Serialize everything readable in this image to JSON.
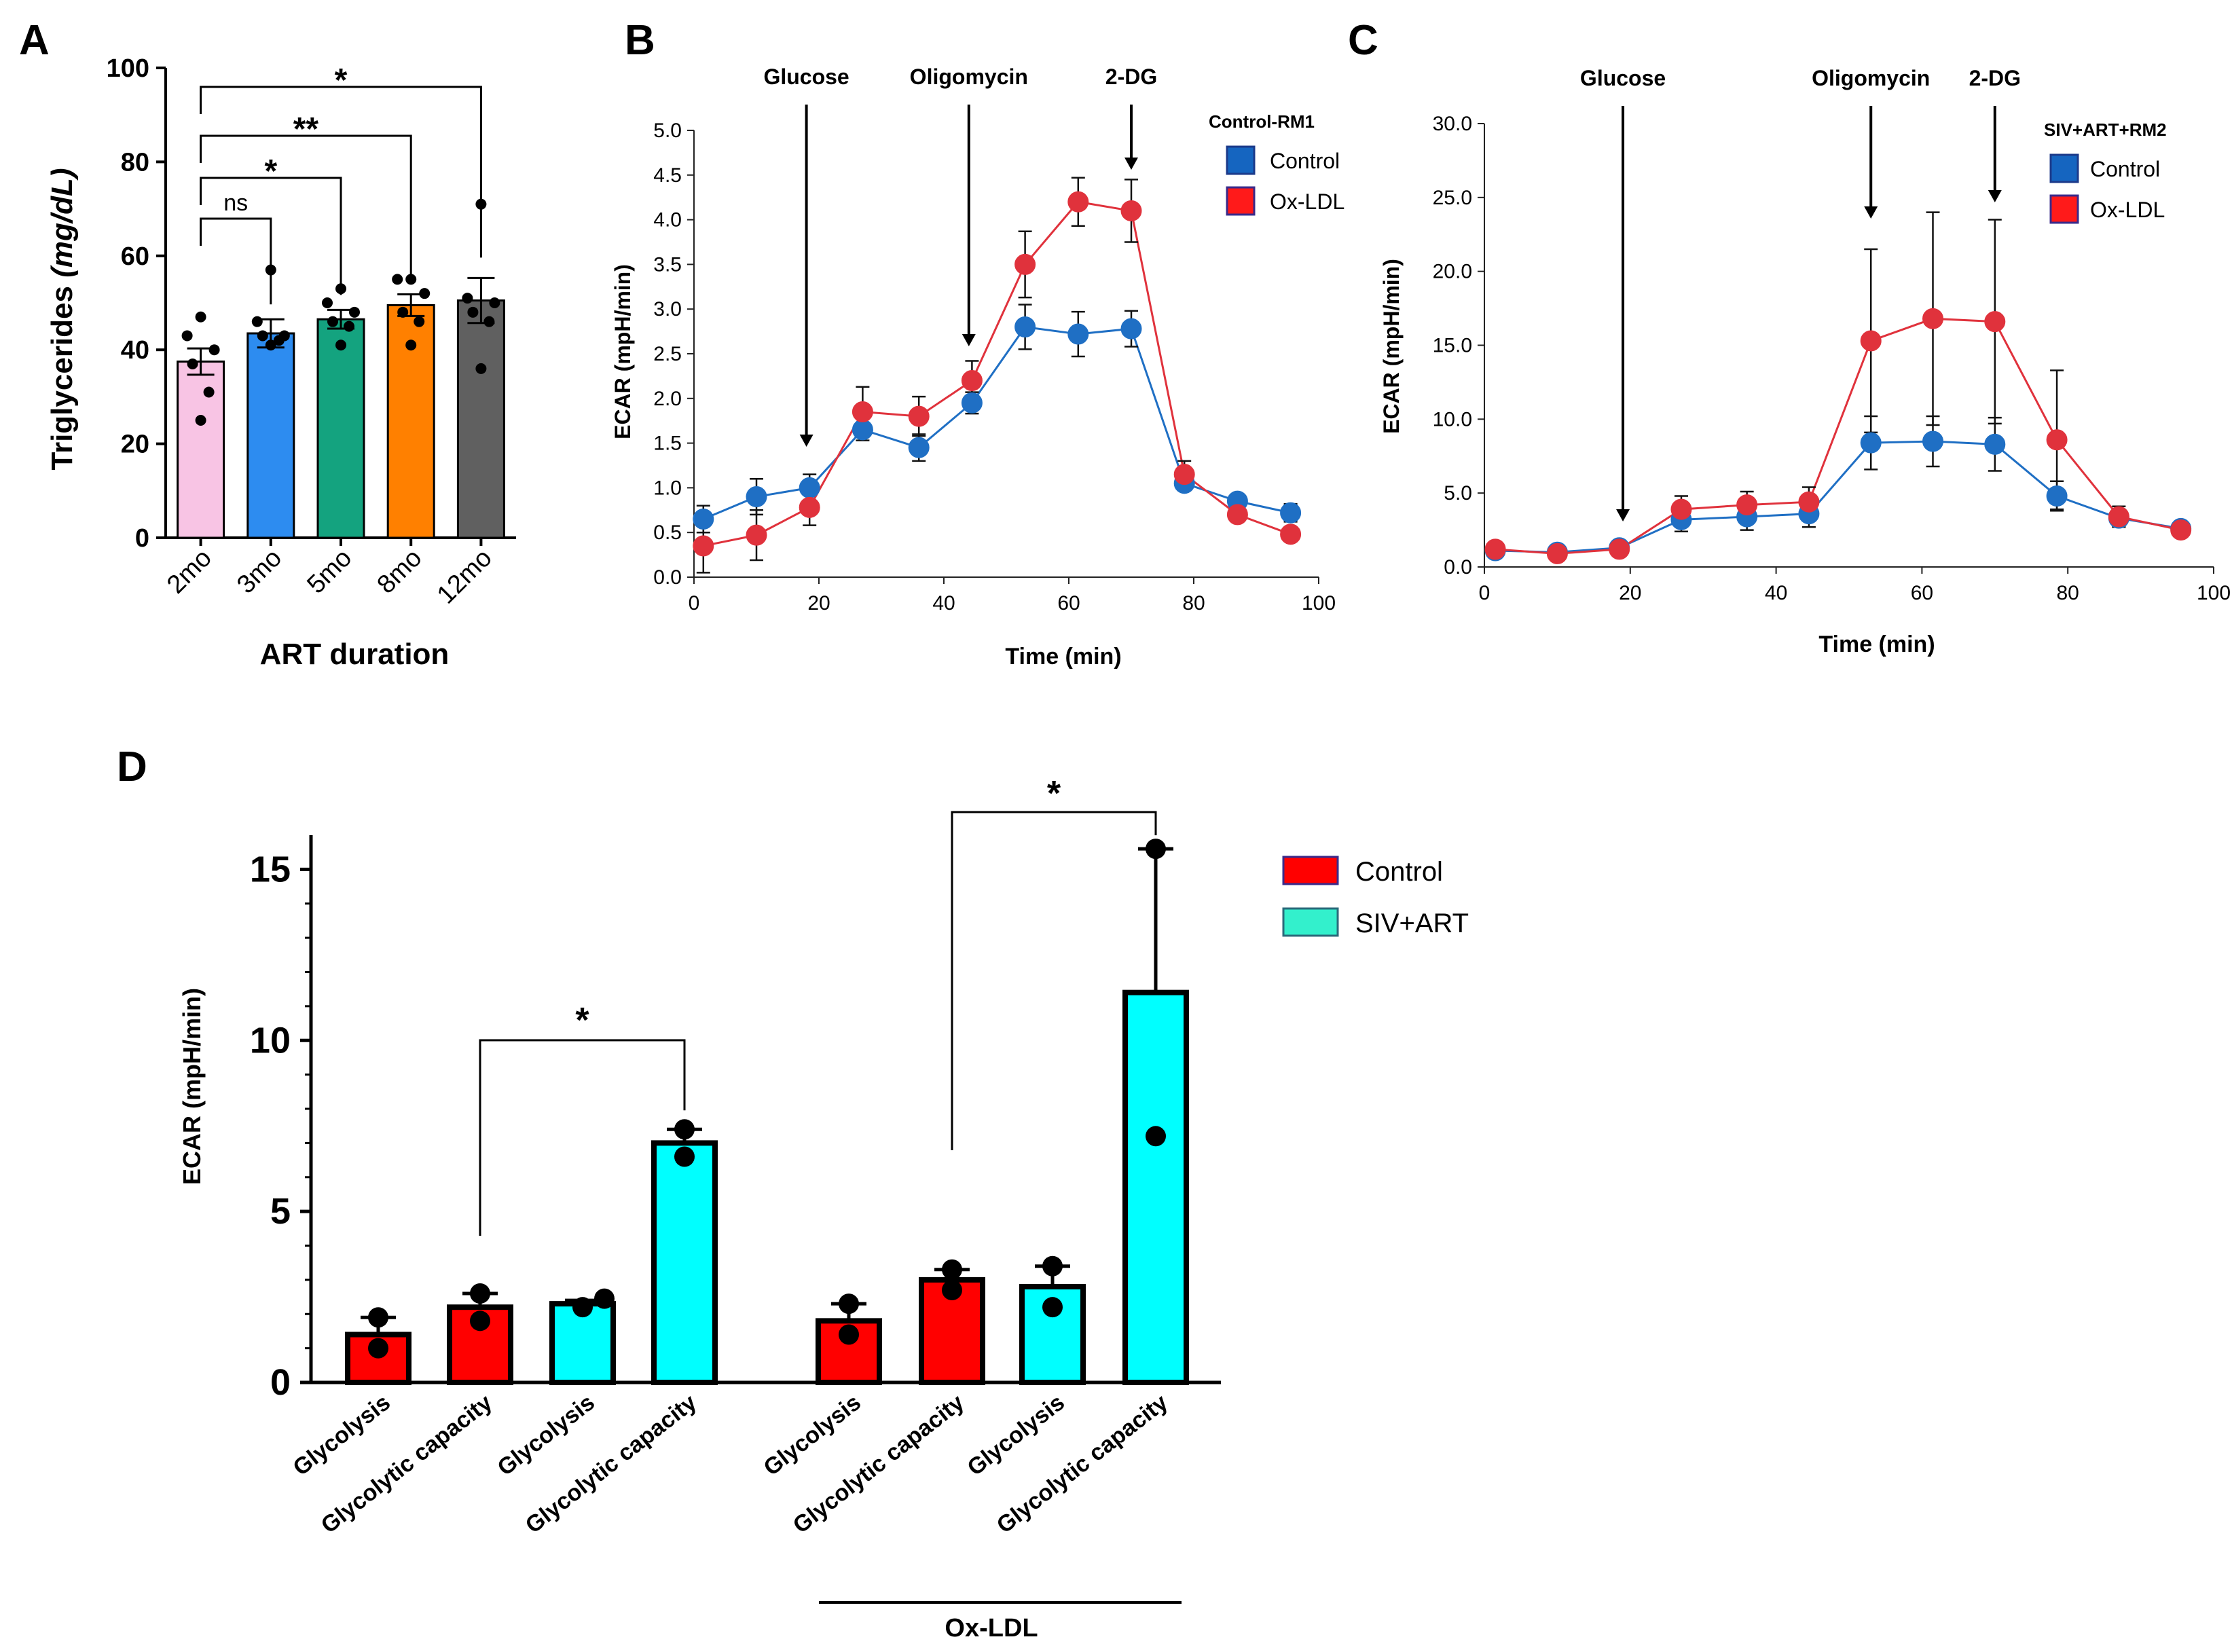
{
  "panels": {
    "A": {
      "letter": "A",
      "ylabel_main": "Triglycerides ",
      "ylabel_unit": "(mg/dL)",
      "xlabel": "ART duration"
    },
    "B": {
      "letter": "B",
      "legend_title": "Control-RM1",
      "legend": [
        "Control",
        "Ox-LDL"
      ],
      "injections": [
        "Glucose",
        "Oligomycin",
        "2-DG"
      ],
      "ylabel": "ECAR (mpH/min)",
      "xlabel": "Time (min)"
    },
    "C": {
      "letter": "C",
      "legend_title": "SIV+ART+RM2",
      "legend": [
        "Control",
        "Ox-LDL"
      ],
      "injections": [
        "Glucose",
        "Oligomycin",
        "2-DG"
      ],
      "ylabel": "ECAR (mpH/min)",
      "xlabel": "Time (min)"
    },
    "D": {
      "letter": "D",
      "legend": [
        "Control",
        "SIV+ART"
      ],
      "ylabel": "ECAR (mpH/min)",
      "group_label": "Ox-LDL"
    }
  },
  "colors": {
    "control_blue": "#1f6fc4",
    "oxldl_red": "#e0323c",
    "legend_blue": "#1565c0",
    "legend_red": "#ff1a1a",
    "d_red": "#ff0000",
    "d_cyan": "#00ffff",
    "d_legend_cyan": "#33f0cc",
    "a_bars": [
      "#f8c4e4",
      "#2d8cf0",
      "#14a37f",
      "#ff8000",
      "#606060"
    ]
  },
  "chart_data": [
    {
      "panel": "A",
      "type": "bar",
      "title": "",
      "xlabel": "ART duration",
      "ylabel": "Triglycerides (mg/dL)",
      "categories": [
        "2mo",
        "3mo",
        "5mo",
        "8mo",
        "12mo"
      ],
      "values": [
        37.5,
        43.5,
        46.5,
        49.5,
        50.5
      ],
      "errors": [
        2.8,
        3.0,
        2.0,
        2.3,
        4.8
      ],
      "points": [
        [
          47,
          43,
          40,
          37,
          31,
          25
        ],
        [
          57,
          46,
          43,
          43,
          42,
          41
        ],
        [
          53,
          50,
          48,
          46,
          45,
          41
        ],
        [
          55,
          55,
          52,
          48,
          46,
          41
        ],
        [
          71,
          51,
          50,
          48,
          46,
          36
        ]
      ],
      "ylim": [
        0,
        100
      ],
      "yticks": [
        0,
        20,
        40,
        60,
        80,
        100
      ],
      "significance": [
        {
          "from": "2mo",
          "to": "3mo",
          "label": "ns"
        },
        {
          "from": "2mo",
          "to": "5mo",
          "label": "*"
        },
        {
          "from": "2mo",
          "to": "8mo",
          "label": "**"
        },
        {
          "from": "2mo",
          "to": "12mo",
          "label": "*"
        }
      ]
    },
    {
      "panel": "B",
      "type": "line",
      "title": "Control-RM1",
      "xlabel": "Time (min)",
      "ylabel": "ECAR (mpH/min)",
      "x": [
        1.5,
        10,
        18.5,
        27,
        36,
        44.5,
        53,
        61.5,
        70,
        78.5,
        87,
        95.5
      ],
      "series": [
        {
          "name": "Control",
          "values": [
            0.65,
            0.9,
            1.0,
            1.65,
            1.45,
            1.95,
            2.8,
            2.72,
            2.78,
            1.05,
            0.85,
            0.72
          ],
          "errors": [
            0.15,
            0.2,
            0.15,
            0.12,
            0.15,
            0.12,
            0.25,
            0.25,
            0.2,
            0.08,
            0.07,
            0.1
          ]
        },
        {
          "name": "Ox-LDL",
          "values": [
            0.35,
            0.47,
            0.78,
            1.85,
            1.8,
            2.2,
            3.5,
            4.2,
            4.1,
            1.15,
            0.7,
            0.48
          ],
          "errors": [
            0.3,
            0.28,
            0.2,
            0.28,
            0.22,
            0.22,
            0.37,
            0.27,
            0.35,
            0.15,
            0.08,
            0.05
          ]
        }
      ],
      "xlim": [
        0,
        100
      ],
      "ylim": [
        0,
        5
      ],
      "xticks": [
        0,
        20,
        40,
        60,
        80,
        100
      ],
      "yticks": [
        0.0,
        0.5,
        1.0,
        1.5,
        2.0,
        2.5,
        3.0,
        3.5,
        4.0,
        4.5,
        5.0
      ],
      "annotations": [
        {
          "text": "Glucose",
          "x": 18
        },
        {
          "text": "Oligomycin",
          "x": 44
        },
        {
          "text": "2-DG",
          "x": 70
        }
      ],
      "legend": "top-right"
    },
    {
      "panel": "C",
      "type": "line",
      "title": "SIV+ART+RM2",
      "xlabel": "Time (min)",
      "ylabel": "ECAR (mpH/min)",
      "x": [
        1.5,
        10,
        18.5,
        27,
        36,
        44.5,
        53,
        61.5,
        70,
        78.5,
        87,
        95.5
      ],
      "series": [
        {
          "name": "Control",
          "values": [
            1.1,
            1.0,
            1.3,
            3.2,
            3.4,
            3.6,
            8.4,
            8.5,
            8.3,
            4.8,
            3.3,
            2.6
          ],
          "errors": [
            0.3,
            0.3,
            0.4,
            0.8,
            0.9,
            0.9,
            1.8,
            1.7,
            1.8,
            1.0,
            0.6,
            0.4
          ]
        },
        {
          "name": "Ox-LDL",
          "values": [
            1.2,
            0.9,
            1.2,
            3.9,
            4.2,
            4.4,
            15.3,
            16.8,
            16.6,
            8.6,
            3.4,
            2.5
          ],
          "errors": [
            0.3,
            0.3,
            0.3,
            0.9,
            0.9,
            1.0,
            6.2,
            7.2,
            6.9,
            4.7,
            0.7,
            0.4
          ]
        }
      ],
      "xlim": [
        0,
        100
      ],
      "ylim": [
        0,
        30
      ],
      "xticks": [
        0,
        20,
        40,
        60,
        80,
        100
      ],
      "yticks": [
        0.0,
        5.0,
        10.0,
        15.0,
        20.0,
        25.0,
        30.0
      ],
      "annotations": [
        {
          "text": "Glucose",
          "x": 19
        },
        {
          "text": "Oligomycin",
          "x": 53
        },
        {
          "text": "2-DG",
          "x": 70
        }
      ],
      "legend": "top-right"
    },
    {
      "panel": "D",
      "type": "bar",
      "title": "",
      "xlabel": "",
      "ylabel": "ECAR (mpH/min)",
      "categories": [
        "Glycolysis",
        "Glycolytic capacity",
        "Glycolysis",
        "Glycolytic capacity",
        "Glycolysis",
        "Glycolytic capacity",
        "Glycolysis",
        "Glycolytic capacity"
      ],
      "groups": [
        "Control",
        "Control",
        "SIV+ART",
        "SIV+ART",
        "Control",
        "Control",
        "SIV+ART",
        "SIV+ART"
      ],
      "values": [
        1.4,
        2.2,
        2.3,
        7.0,
        1.8,
        3.0,
        2.8,
        11.4
      ],
      "errors": [
        0.5,
        0.4,
        0.1,
        0.4,
        0.5,
        0.3,
        0.6,
        4.2
      ],
      "points": [
        [
          1.9,
          1.0
        ],
        [
          2.6,
          1.8
        ],
        [
          2.45,
          2.2
        ],
        [
          7.4,
          6.6
        ],
        [
          2.3,
          1.4
        ],
        [
          3.3,
          2.7
        ],
        [
          3.4,
          2.2
        ],
        [
          15.6,
          7.2
        ]
      ],
      "ylim": [
        0,
        16
      ],
      "yticks": [
        0,
        5,
        10,
        15
      ],
      "group_labels": [
        {
          "text": "Ox-LDL",
          "from": 4,
          "to": 7
        }
      ],
      "significance": [
        {
          "from": 1,
          "to": 3,
          "label": "*"
        },
        {
          "from": 5,
          "to": 7,
          "label": "*"
        }
      ],
      "legend": "top-right"
    }
  ]
}
